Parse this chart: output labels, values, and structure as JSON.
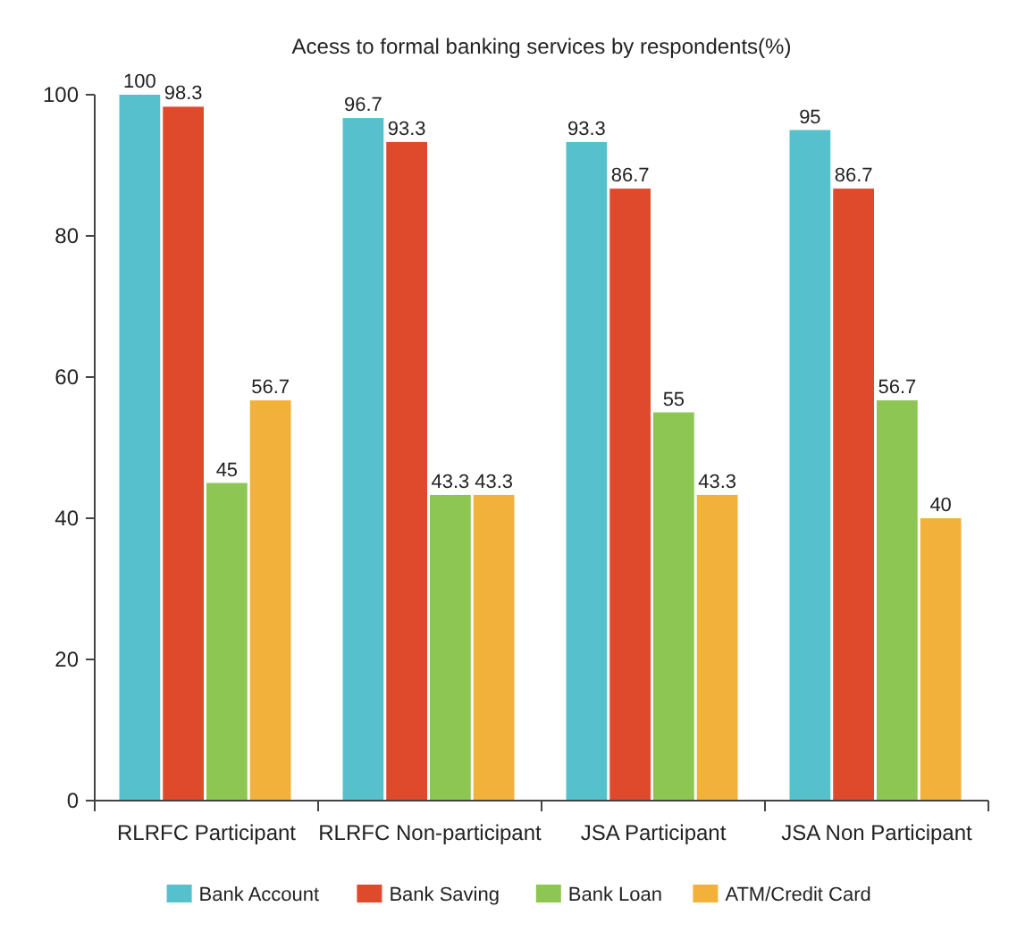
{
  "chart_data": {
    "type": "bar",
    "title": "Acess to formal banking services by respondents(%)",
    "categories": [
      "RLRFC Participant",
      "RLRFC Non-participant",
      "JSA Participant",
      "JSA Non Participant"
    ],
    "series": [
      {
        "name": "Bank Account",
        "color": "#56c1cc",
        "values": [
          100,
          96.7,
          93.3,
          95
        ]
      },
      {
        "name": "Bank Saving",
        "color": "#df4a2c",
        "values": [
          98.3,
          93.3,
          86.7,
          86.7
        ]
      },
      {
        "name": "Bank Loan",
        "color": "#8ec653",
        "values": [
          45,
          43.3,
          55,
          56.7
        ]
      },
      {
        "name": "ATM/Credit Card",
        "color": "#f2b13a",
        "values": [
          56.7,
          43.3,
          43.3,
          40
        ]
      }
    ],
    "ylim": [
      0,
      100
    ],
    "yticks": [
      0,
      20,
      40,
      60,
      80,
      100
    ],
    "grid": false,
    "data_labels": true,
    "legend": "bottom"
  }
}
